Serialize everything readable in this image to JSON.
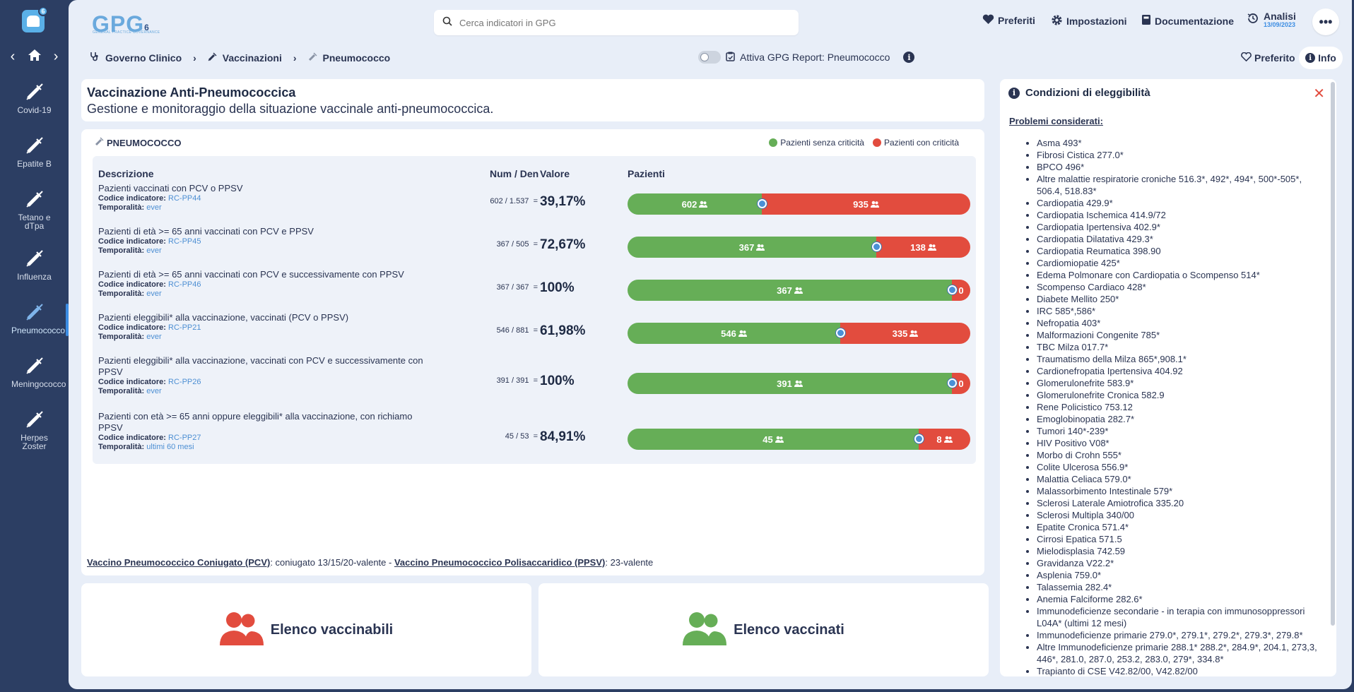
{
  "sidebar": {
    "logo_badge": "6",
    "items": [
      {
        "label": "Covid-19"
      },
      {
        "label": "Epatite B"
      },
      {
        "label": "Tetano e dTpa"
      },
      {
        "label": "Influenza"
      },
      {
        "label": "Pneumococco"
      },
      {
        "label": "Meningococco"
      },
      {
        "label": "Herpes Zoster"
      }
    ]
  },
  "header": {
    "logo_text": "GPG",
    "logo_sup": "6",
    "logo_tagline": "GENERAL PRACTICE GOVERNANCE",
    "search_placeholder": "Cerca indicatori in GPG",
    "preferiti": "Preferiti",
    "impostazioni": "Impostazioni",
    "documentazione": "Documentazione",
    "analisi": "Analisi",
    "analisi_date": "13/09/2023",
    "more": "•••"
  },
  "breadcrumb": {
    "items": [
      "Governo Clinico",
      "Vaccinazioni",
      "Pneumococco"
    ],
    "report_label": "Attiva GPG Report: Pneumococco",
    "preferito": "Preferito",
    "info": "Info"
  },
  "title": {
    "heading": "Vaccinazione Anti-Pneumococcica",
    "subtitle": "Gestione e monitoraggio della situazione vaccinale anti-pneumococcica."
  },
  "card": {
    "section": "PNEUMOCOCCO",
    "legend_ok": "Pazienti senza criticità",
    "legend_bad": "Pazienti con criticità",
    "col_desc": "Descrizione",
    "col_numden": "Num / Den",
    "col_valore": "Valore",
    "col_pazienti": "Pazienti",
    "code_label": "Codice indicatore:",
    "temp_label": "Temporalità:",
    "rows": [
      {
        "desc": "Pazienti vaccinati con PCV o PPSV",
        "code": "RC-PP44",
        "temp": "ever",
        "frac": "602 / 1.537",
        "eq": "=",
        "value": "39,17%",
        "ok": "602",
        "bad": "935",
        "ok_frac": 0.3917
      },
      {
        "desc": "Pazienti di età >= 65 anni vaccinati con PCV e PPSV",
        "code": "RC-PP45",
        "temp": "ever",
        "frac": "367 / 505",
        "eq": "=",
        "value": "72,67%",
        "ok": "367",
        "bad": "138",
        "ok_frac": 0.7267
      },
      {
        "desc": "Pazienti di età >= 65 anni vaccinati con PCV e successivamente con PPSV",
        "code": "RC-PP46",
        "temp": "ever",
        "frac": "367 / 367",
        "eq": "=",
        "value": "100%",
        "ok": "367",
        "bad": "0",
        "ok_frac": 1.0
      },
      {
        "desc": "Pazienti eleggibili* alla vaccinazione, vaccinati (PCV o PPSV)",
        "code": "RC-PP21",
        "temp": "ever",
        "frac": "546 / 881",
        "eq": "=",
        "value": "61,98%",
        "ok": "546",
        "bad": "335",
        "ok_frac": 0.6198
      },
      {
        "desc": "Pazienti eleggibili* alla vaccinazione, vaccinati con PCV e successivamente con PPSV",
        "code": "RC-PP26",
        "temp": "ever",
        "frac": "391 / 391",
        "eq": "=",
        "value": "100%",
        "ok": "391",
        "bad": "0",
        "ok_frac": 1.0
      },
      {
        "desc": "Pazienti con età >= 65 anni oppure eleggibili* alla vaccinazione, con richiamo PPSV",
        "code": "RC-PP27",
        "temp": "ultimi 60 mesi",
        "frac": "45 / 53",
        "eq": "=",
        "value": "84,91%",
        "ok": "45",
        "bad": "8",
        "ok_frac": 0.8491
      }
    ],
    "note_pcv": "Vaccino Pneumococcico Coniugato (PCV)",
    "note_pcv_text": ": coniugato 13/15/20-valente - ",
    "note_ppsv": "Vaccino Pneumococcico Polisaccaridico (PPSV)",
    "note_ppsv_text": ": 23-valente"
  },
  "buttons": {
    "vaccinabili": "Elenco vaccinabili",
    "vaccinati": "Elenco vaccinati"
  },
  "panel": {
    "title": "Condizioni di eleggibilità",
    "subtitle": "Problemi considerati:",
    "items": [
      "Asma 493*",
      "Fibrosi Cistica 277.0*",
      "BPCO 496*",
      "Altre malattie respiratorie croniche 516.3*, 492*, 494*, 500*-505*, 506.4, 518.83*",
      "Cardiopatia 429.9*",
      "Cardiopatia Ischemica 414.9/72",
      "Cardiopatia Ipertensiva 402.9*",
      "Cardiopatia Dilatativa 429.3*",
      "Cardiopatia Reumatica 398.90",
      "Cardiomiopatie 425*",
      "Edema Polmonare con Cardiopatia o Scompenso 514*",
      "Scompenso Cardiaco 428*",
      "Diabete Mellito 250*",
      "IRC 585*,586*",
      "Nefropatia 403*",
      "Malformazioni Congenite 785*",
      "TBC Milza 017.7*",
      "Traumatismo della Milza 865*,908.1*",
      "Cardionefropatia Ipertensiva 404.92",
      "Glomerulonefrite 583.9*",
      "Glomerulonefrite Cronica 582.9",
      "Rene Policistico 753.12",
      "Emoglobinopatia 282.7*",
      "Tumori 140*-239*",
      "HIV Positivo V08*",
      "Morbo di Crohn 555*",
      "Colite Ulcerosa 556.9*",
      "Malattia Celiaca 579.0*",
      "Malassorbimento Intestinale 579*",
      "Sclerosi Laterale Amiotrofica 335.20",
      "Sclerosi Multipla 340/00",
      "Epatite Cronica 571.4*",
      "Cirrosi Epatica 571.5",
      "Mielodisplasia 742.59",
      "Gravidanza V22.2*",
      "Asplenia 759.0*",
      "Talassemia 282.4*",
      "Anemia Falciforme 282.6*",
      "Immunodeficienze secondarie - in terapia con immunosoppressori L04A* (ultimi 12 mesi)",
      "Immunodeficienze primarie 279.0*, 279.1*, 279.2*, 279.3*, 279.8*",
      "Altre Immunodeficienze primarie 288.1* 288.2*, 284.9*, 204.1, 273,3, 446*, 281.0, 287.0, 253.2, 283.0, 279*, 334.8*",
      "Trapianto di CSE V42.82/00, V42.82/00"
    ]
  },
  "colors": {
    "ok": "#66ae57",
    "bad": "#e24c3e",
    "accent": "#3c8de3",
    "sidebar": "#2c3e63"
  }
}
